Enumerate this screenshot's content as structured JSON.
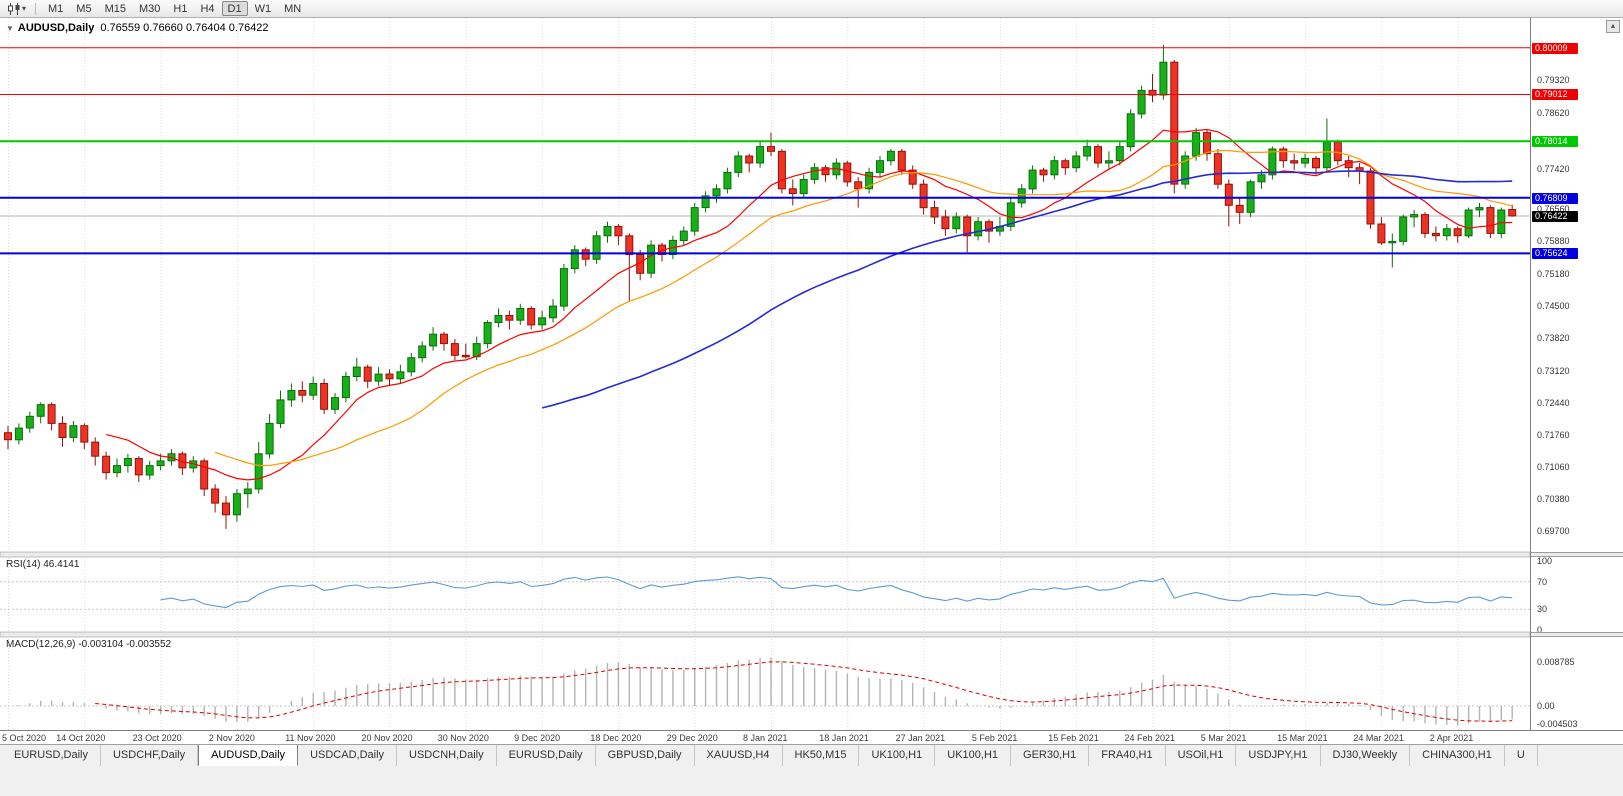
{
  "icons": {
    "toolbar_caret": "▾",
    "header_collapse": "▼",
    "scroll_up": "▲"
  },
  "colors": {
    "up": "#18b018",
    "up_border": "#0a6e0a",
    "down": "#ee3224",
    "down_border": "#8f130a",
    "ma_fast": "#ff0000",
    "ma_mid": "#ff9900",
    "ma_slow": "#2929cf",
    "level_red": "#f00000",
    "level_green": "#00c800",
    "level_blue": "#0000e0",
    "current_black": "#000000",
    "grid": "#dcdcdc",
    "rsi_line": "#5b9bd5",
    "macd_hist": "#b4b4b4",
    "macd_signal": "#dd0000",
    "current_price_line": "#b4b4b4"
  },
  "toolbar": {
    "timeframes": [
      "M1",
      "M5",
      "M15",
      "M30",
      "H1",
      "H4",
      "D1",
      "W1",
      "MN"
    ],
    "active_timeframe": "D1"
  },
  "chart_header": {
    "symbol": "AUDUSD,Daily",
    "ohlc": "0.76559 0.76660 0.76404 0.76422"
  },
  "price_axis": {
    "ticks": [
      {
        "text": "0.79320",
        "price": 0.7932
      },
      {
        "text": "0.78620",
        "price": 0.7862
      },
      {
        "text": "0.77420",
        "price": 0.7742
      },
      {
        "text": "0.76560",
        "price": 0.7656
      },
      {
        "text": "0.75880",
        "price": 0.7588
      },
      {
        "text": "0.75180",
        "price": 0.7518
      },
      {
        "text": "0.74500",
        "price": 0.745
      },
      {
        "text": "0.73820",
        "price": 0.7382
      },
      {
        "text": "0.73120",
        "price": 0.7312
      },
      {
        "text": "0.72440",
        "price": 0.7244
      },
      {
        "text": "0.71760",
        "price": 0.7176
      },
      {
        "text": "0.71060",
        "price": 0.7106
      },
      {
        "text": "0.70380",
        "price": 0.7038
      },
      {
        "text": "0.69700",
        "price": 0.697
      }
    ],
    "levels": [
      {
        "text": "0.80009",
        "price": 0.80009,
        "color_key": "level_red"
      },
      {
        "text": "0.79012",
        "price": 0.79012,
        "color_key": "level_red"
      },
      {
        "text": "0.78014",
        "price": 0.78014,
        "color_key": "level_green"
      },
      {
        "text": "0.76809",
        "price": 0.76809,
        "color_key": "level_blue"
      },
      {
        "text": "0.75624",
        "price": 0.75624,
        "color_key": "level_blue"
      }
    ],
    "current": {
      "text": "0.76422",
      "price": 0.76422,
      "color_key": "current_black"
    }
  },
  "rsi": {
    "label": "RSI(14) 46.4141",
    "period": 14,
    "levels": [
      {
        "text": "100",
        "value": 100
      },
      {
        "text": "70",
        "value": 70
      },
      {
        "text": "30",
        "value": 30
      },
      {
        "text": "0",
        "value": 0
      }
    ],
    "dotted_levels": [
      70,
      30
    ]
  },
  "macd": {
    "label": "MACD(12,26,9) -0.003104 -0.003552",
    "fast": 12,
    "slow": 26,
    "signal": 9,
    "axis_labels": [
      {
        "text": "0.008785",
        "value": 0.008785
      },
      {
        "text": "0.00",
        "value": 0
      },
      {
        "text": "-0.004503",
        "value": -0.004503
      }
    ]
  },
  "tabs": {
    "items": [
      "EURUSD,Daily",
      "USDCHF,Daily",
      "AUDUSD,Daily",
      "USDCAD,Daily",
      "USDCNH,Daily",
      "EURUSD,Daily",
      "GBPUSD,Daily",
      "XAUUSD,H4",
      "HK50,M15",
      "UK100,H1",
      "UK100,H1",
      "GER30,H1",
      "FRA40,H1",
      "USOil,H1",
      "USDJPY,H1",
      "DJ30,Weekly",
      "CHINA300,H1",
      "U"
    ],
    "active_index": 2
  },
  "chart_data": {
    "type": "candlestick",
    "title": "AUDUSD,Daily",
    "symbol": "AUDUSD",
    "timeframe": "Daily",
    "price_range": [
      0.693,
      0.806
    ],
    "current_price": 0.76422,
    "x_ticks": [
      {
        "index": 0,
        "label": "5 Oct 2020"
      },
      {
        "index": 7,
        "label": "14 Oct 2020"
      },
      {
        "index": 14,
        "label": "23 Oct 2020"
      },
      {
        "index": 21,
        "label": "2 Nov 2020"
      },
      {
        "index": 28,
        "label": "11 Nov 2020"
      },
      {
        "index": 35,
        "label": "20 Nov 2020"
      },
      {
        "index": 42,
        "label": "30 Nov 2020"
      },
      {
        "index": 49,
        "label": "9 Dec 2020"
      },
      {
        "index": 56,
        "label": "18 Dec 2020"
      },
      {
        "index": 63,
        "label": "29 Dec 2020"
      },
      {
        "index": 70,
        "label": "8 Jan 2021"
      },
      {
        "index": 77,
        "label": "18 Jan 2021"
      },
      {
        "index": 84,
        "label": "27 Jan 2021"
      },
      {
        "index": 91,
        "label": "5 Feb 2021"
      },
      {
        "index": 98,
        "label": "15 Feb 2021"
      },
      {
        "index": 105,
        "label": "24 Feb 2021"
      },
      {
        "index": 112,
        "label": "5 Mar 2021"
      },
      {
        "index": 119,
        "label": "15 Mar 2021"
      },
      {
        "index": 126,
        "label": "24 Mar 2021"
      },
      {
        "index": 133,
        "label": "2 Apr 2021"
      }
    ],
    "hlines": [
      {
        "price": 0.80009,
        "color_key": "level_red",
        "width": 1
      },
      {
        "price": 0.79012,
        "color_key": "level_red",
        "width": 1
      },
      {
        "price": 0.78014,
        "color_key": "level_green",
        "width": 2
      },
      {
        "price": 0.76809,
        "color_key": "level_blue",
        "width": 2
      },
      {
        "price": 0.75624,
        "color_key": "level_blue",
        "width": 2
      }
    ],
    "moving_averages": [
      {
        "name": "ma-fast-line",
        "period": 10,
        "color_key": "ma_fast",
        "width": 1.2
      },
      {
        "name": "ma-mid-line",
        "period": 20,
        "color_key": "ma_mid",
        "width": 1.2
      },
      {
        "name": "ma-slow-line",
        "period": 50,
        "color_key": "ma_slow",
        "width": 1.6
      }
    ],
    "candles": [
      [
        0.718,
        0.7195,
        0.7145,
        0.7165
      ],
      [
        0.7165,
        0.72,
        0.7155,
        0.719
      ],
      [
        0.719,
        0.7225,
        0.718,
        0.7215
      ],
      [
        0.7215,
        0.7245,
        0.72,
        0.724
      ],
      [
        0.724,
        0.7245,
        0.7185,
        0.72
      ],
      [
        0.72,
        0.7215,
        0.715,
        0.717
      ],
      [
        0.717,
        0.7205,
        0.716,
        0.7195
      ],
      [
        0.7195,
        0.72,
        0.7145,
        0.716
      ],
      [
        0.716,
        0.717,
        0.711,
        0.713
      ],
      [
        0.713,
        0.714,
        0.708,
        0.7095
      ],
      [
        0.7095,
        0.7125,
        0.7085,
        0.711
      ],
      [
        0.711,
        0.7135,
        0.7095,
        0.7125
      ],
      [
        0.7125,
        0.713,
        0.7075,
        0.709
      ],
      [
        0.709,
        0.712,
        0.708,
        0.711
      ],
      [
        0.711,
        0.7135,
        0.71,
        0.712
      ],
      [
        0.712,
        0.7145,
        0.711,
        0.7135
      ],
      [
        0.7135,
        0.714,
        0.709,
        0.7105
      ],
      [
        0.7105,
        0.713,
        0.7095,
        0.712
      ],
      [
        0.712,
        0.7125,
        0.7045,
        0.706
      ],
      [
        0.706,
        0.707,
        0.701,
        0.703
      ],
      [
        0.703,
        0.7045,
        0.6975,
        0.7005
      ],
      [
        0.7005,
        0.706,
        0.699,
        0.705
      ],
      [
        0.705,
        0.7075,
        0.702,
        0.706
      ],
      [
        0.706,
        0.716,
        0.705,
        0.7135
      ],
      [
        0.7135,
        0.722,
        0.7125,
        0.72
      ],
      [
        0.72,
        0.727,
        0.719,
        0.725
      ],
      [
        0.725,
        0.7285,
        0.7235,
        0.727
      ],
      [
        0.727,
        0.729,
        0.7245,
        0.726
      ],
      [
        0.726,
        0.73,
        0.725,
        0.7285
      ],
      [
        0.7285,
        0.7295,
        0.722,
        0.723
      ],
      [
        0.723,
        0.7265,
        0.722,
        0.7255
      ],
      [
        0.7255,
        0.731,
        0.7245,
        0.73
      ],
      [
        0.73,
        0.734,
        0.729,
        0.732
      ],
      [
        0.732,
        0.7325,
        0.7275,
        0.729
      ],
      [
        0.729,
        0.732,
        0.728,
        0.7305
      ],
      [
        0.7305,
        0.7315,
        0.728,
        0.7295
      ],
      [
        0.7295,
        0.7325,
        0.7285,
        0.731
      ],
      [
        0.731,
        0.735,
        0.73,
        0.734
      ],
      [
        0.734,
        0.7375,
        0.733,
        0.7365
      ],
      [
        0.7365,
        0.7405,
        0.7355,
        0.739
      ],
      [
        0.739,
        0.7395,
        0.7355,
        0.737
      ],
      [
        0.737,
        0.738,
        0.7335,
        0.7345
      ],
      [
        0.7345,
        0.737,
        0.7338,
        0.7342
      ],
      [
        0.7342,
        0.7385,
        0.7335,
        0.737
      ],
      [
        0.737,
        0.742,
        0.736,
        0.7415
      ],
      [
        0.7415,
        0.7445,
        0.7405,
        0.743
      ],
      [
        0.743,
        0.744,
        0.74,
        0.742
      ],
      [
        0.742,
        0.7455,
        0.741,
        0.7445
      ],
      [
        0.7445,
        0.745,
        0.74,
        0.741
      ],
      [
        0.741,
        0.744,
        0.74,
        0.7425
      ],
      [
        0.7425,
        0.7465,
        0.7415,
        0.745
      ],
      [
        0.745,
        0.754,
        0.744,
        0.753
      ],
      [
        0.753,
        0.758,
        0.752,
        0.757
      ],
      [
        0.757,
        0.7575,
        0.7535,
        0.755
      ],
      [
        0.755,
        0.761,
        0.754,
        0.76
      ],
      [
        0.76,
        0.763,
        0.7585,
        0.762
      ],
      [
        0.762,
        0.7625,
        0.758,
        0.76
      ],
      [
        0.76,
        0.7605,
        0.746,
        0.756
      ],
      [
        0.756,
        0.757,
        0.7505,
        0.752
      ],
      [
        0.752,
        0.759,
        0.751,
        0.758
      ],
      [
        0.758,
        0.7585,
        0.7545,
        0.756
      ],
      [
        0.756,
        0.76,
        0.755,
        0.759
      ],
      [
        0.759,
        0.762,
        0.758,
        0.761
      ],
      [
        0.761,
        0.767,
        0.76,
        0.766
      ],
      [
        0.766,
        0.7695,
        0.765,
        0.7685
      ],
      [
        0.7685,
        0.771,
        0.767,
        0.77
      ],
      [
        0.77,
        0.7745,
        0.769,
        0.7735
      ],
      [
        0.7735,
        0.778,
        0.7725,
        0.777
      ],
      [
        0.777,
        0.7775,
        0.7735,
        0.7755
      ],
      [
        0.7755,
        0.78,
        0.7745,
        0.779
      ],
      [
        0.779,
        0.782,
        0.777,
        0.778
      ],
      [
        0.778,
        0.7785,
        0.769,
        0.77
      ],
      [
        0.77,
        0.772,
        0.7665,
        0.769
      ],
      [
        0.769,
        0.773,
        0.768,
        0.772
      ],
      [
        0.772,
        0.7755,
        0.771,
        0.7745
      ],
      [
        0.7745,
        0.775,
        0.7715,
        0.773
      ],
      [
        0.773,
        0.7765,
        0.772,
        0.7755
      ],
      [
        0.7755,
        0.776,
        0.7705,
        0.7715
      ],
      [
        0.7715,
        0.7725,
        0.766,
        0.77
      ],
      [
        0.77,
        0.7745,
        0.769,
        0.7735
      ],
      [
        0.7735,
        0.777,
        0.7725,
        0.776
      ],
      [
        0.776,
        0.7785,
        0.775,
        0.778
      ],
      [
        0.778,
        0.7785,
        0.773,
        0.774
      ],
      [
        0.774,
        0.775,
        0.77,
        0.771
      ],
      [
        0.771,
        0.772,
        0.7645,
        0.766
      ],
      [
        0.766,
        0.7675,
        0.7625,
        0.764
      ],
      [
        0.764,
        0.7655,
        0.76,
        0.7615
      ],
      [
        0.7615,
        0.765,
        0.7605,
        0.764
      ],
      [
        0.764,
        0.7645,
        0.7565,
        0.76
      ],
      [
        0.76,
        0.764,
        0.759,
        0.763
      ],
      [
        0.763,
        0.7635,
        0.7585,
        0.761
      ],
      [
        0.761,
        0.764,
        0.76,
        0.762
      ],
      [
        0.762,
        0.768,
        0.761,
        0.767
      ],
      [
        0.767,
        0.771,
        0.766,
        0.77
      ],
      [
        0.77,
        0.775,
        0.769,
        0.774
      ],
      [
        0.774,
        0.7745,
        0.7715,
        0.773
      ],
      [
        0.773,
        0.777,
        0.772,
        0.776
      ],
      [
        0.776,
        0.7765,
        0.773,
        0.7745
      ],
      [
        0.7745,
        0.778,
        0.7735,
        0.777
      ],
      [
        0.777,
        0.7805,
        0.776,
        0.779
      ],
      [
        0.779,
        0.7795,
        0.7745,
        0.7755
      ],
      [
        0.7755,
        0.778,
        0.774,
        0.776
      ],
      [
        0.776,
        0.78,
        0.775,
        0.779
      ],
      [
        0.779,
        0.787,
        0.778,
        0.786
      ],
      [
        0.786,
        0.792,
        0.785,
        0.791
      ],
      [
        0.791,
        0.7945,
        0.7885,
        0.79
      ],
      [
        0.79,
        0.8007,
        0.789,
        0.797
      ],
      [
        0.797,
        0.7975,
        0.769,
        0.771
      ],
      [
        0.771,
        0.778,
        0.77,
        0.777
      ],
      [
        0.777,
        0.783,
        0.776,
        0.782
      ],
      [
        0.782,
        0.7825,
        0.776,
        0.7775
      ],
      [
        0.7775,
        0.7785,
        0.77,
        0.771
      ],
      [
        0.771,
        0.772,
        0.762,
        0.7665
      ],
      [
        0.7665,
        0.768,
        0.7625,
        0.765
      ],
      [
        0.765,
        0.772,
        0.764,
        0.7715
      ],
      [
        0.7715,
        0.774,
        0.77,
        0.773
      ],
      [
        0.773,
        0.779,
        0.772,
        0.7785
      ],
      [
        0.7785,
        0.779,
        0.7745,
        0.776
      ],
      [
        0.776,
        0.7775,
        0.774,
        0.7755
      ],
      [
        0.7755,
        0.7775,
        0.7745,
        0.7765
      ],
      [
        0.7765,
        0.777,
        0.773,
        0.7745
      ],
      [
        0.7745,
        0.785,
        0.7735,
        0.78
      ],
      [
        0.78,
        0.7805,
        0.775,
        0.776
      ],
      [
        0.776,
        0.777,
        0.7725,
        0.7745
      ],
      [
        0.7745,
        0.7755,
        0.771,
        0.7738
      ],
      [
        0.7738,
        0.7745,
        0.7615,
        0.7625
      ],
      [
        0.7625,
        0.764,
        0.758,
        0.7585
      ],
      [
        0.7585,
        0.7605,
        0.7532,
        0.7588
      ],
      [
        0.7588,
        0.7645,
        0.758,
        0.764
      ],
      [
        0.764,
        0.7655,
        0.7618,
        0.7645
      ],
      [
        0.7645,
        0.765,
        0.7595,
        0.7605
      ],
      [
        0.7605,
        0.762,
        0.7588,
        0.76
      ],
      [
        0.76,
        0.7625,
        0.759,
        0.7615
      ],
      [
        0.7615,
        0.762,
        0.7585,
        0.76
      ],
      [
        0.76,
        0.766,
        0.7595,
        0.7655
      ],
      [
        0.7655,
        0.767,
        0.764,
        0.766
      ],
      [
        0.766,
        0.7665,
        0.7595,
        0.7605
      ],
      [
        0.7605,
        0.766,
        0.7595,
        0.7655
      ],
      [
        0.76559,
        0.7666,
        0.76404,
        0.76422
      ]
    ]
  }
}
